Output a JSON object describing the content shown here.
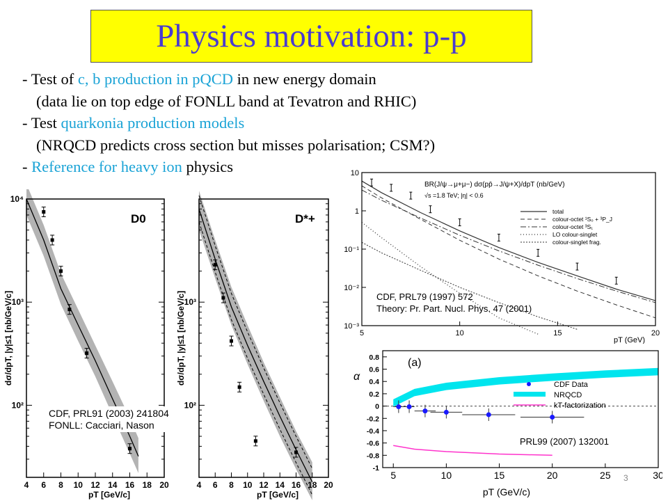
{
  "slide": {
    "title": "Physics motivation: p-p",
    "bullet1": {
      "pre": "- Test of ",
      "hl": "c, b production in pQCD",
      "post": " in new energy domain"
    },
    "bullet1_sub": "(data lie on top edge of FONLL band at Tevatron and RHIC)",
    "bullet2": {
      "pre": "- Test ",
      "hl": "quarkonia production models"
    },
    "bullet2_sub": "(NRQCD predicts cross section but misses polarisation; CSM?)",
    "bullet3": {
      "pre": "- ",
      "hl": "Reference for heavy ion",
      "post": " physics"
    },
    "page_number": "3"
  },
  "captions": {
    "d_meson": [
      "CDF, PRL91 (2003) 241804",
      "FONLL: Cacciari, Nason"
    ],
    "jpsi": [
      "CDF, PRL79 (1997) 572",
      "Theory: Pr. Part. Nucl. Phys. 47 (2001)"
    ],
    "polarisation": "PRL99 (2007) 132001"
  },
  "colors": {
    "title_bg": "#ffff00",
    "title_text": "#4a3bd0",
    "highlight": "#1aa3d6",
    "nrqcd_band": "#00e5ee",
    "kt_line": "#ff33cc",
    "cdf_data": "#1a1aff"
  },
  "chart_data": [
    {
      "type": "line",
      "title": "D0",
      "xlabel": "pT [GeV/c]",
      "ylabel": "dσ/dpT, |y|≤1 [nb/GeV/c]",
      "xlim": [
        4,
        20
      ],
      "ylim": [
        20,
        10000
      ],
      "yscale": "log",
      "xticks": [
        4,
        6,
        8,
        10,
        12,
        14,
        16,
        18,
        20
      ],
      "ytick_labels": [
        "10²",
        "10³",
        "10⁴"
      ],
      "series": [
        {
          "style": "data",
          "x": [
            6,
            7,
            8,
            9,
            11,
            16
          ],
          "y": [
            7500,
            4000,
            2000,
            850,
            320,
            38
          ]
        },
        {
          "style": "band",
          "x": [
            4,
            6,
            8,
            10,
            12,
            14,
            16,
            17
          ],
          "lo": [
            7000,
            2800,
            950,
            420,
            190,
            80,
            34,
            22
          ],
          "hi": [
            14000,
            5600,
            1900,
            850,
            380,
            170,
            75,
            48
          ]
        },
        {
          "style": "central",
          "x": [
            4,
            6,
            8,
            10,
            12,
            14,
            16,
            17
          ],
          "y": [
            10000,
            4000,
            1350,
            600,
            270,
            115,
            50,
            32
          ]
        }
      ]
    },
    {
      "type": "line",
      "title": "D*+",
      "xlabel": "pT [GeV/c]",
      "ylabel": "dσ/dpT, |y|≤1 [nb/GeV/c]",
      "xlim": [
        4,
        20
      ],
      "ylim": [
        20,
        10000
      ],
      "yscale": "log",
      "xticks": [
        4,
        6,
        8,
        10,
        12,
        14,
        16,
        18,
        20
      ],
      "ytick_labels": [
        "10²",
        "10³"
      ],
      "series": [
        {
          "style": "data",
          "x": [
            6,
            7,
            8,
            9,
            11,
            16
          ],
          "y": [
            2300,
            1100,
            420,
            150,
            45,
            35
          ]
        },
        {
          "style": "band",
          "x": [
            4,
            6,
            8,
            10,
            12,
            14,
            16,
            18
          ],
          "lo": [
            5000,
            1700,
            600,
            250,
            110,
            50,
            24,
            12
          ],
          "hi": [
            12000,
            4000,
            1400,
            600,
            260,
            120,
            56,
            28
          ]
        },
        {
          "style": "central",
          "x": [
            4,
            6,
            8,
            10,
            12,
            14,
            16,
            18
          ],
          "y": [
            8000,
            2600,
            900,
            380,
            170,
            78,
            37,
            18
          ]
        }
      ]
    },
    {
      "type": "line",
      "title": "BR(J/ψ→μ+μ−) dσ(pp̄→J/ψ+X)/dpT (nb/GeV)",
      "subtitle": "√s =1.8 TeV; |η| < 0.6",
      "xlabel": "pT (GeV)",
      "ylabel": "",
      "xlim": [
        5,
        20
      ],
      "ylim": [
        0.001,
        10
      ],
      "yscale": "log",
      "xticks": [
        5,
        10,
        15,
        20
      ],
      "ytick_labels": [
        "10",
        "1",
        "10⁻¹",
        "10⁻²",
        "10⁻³"
      ],
      "legend_position": "top-right",
      "series": [
        {
          "name": "total",
          "x": [
            5,
            6,
            8,
            10,
            12,
            14,
            16,
            18,
            20
          ],
          "y": [
            6,
            3,
            0.9,
            0.3,
            0.11,
            0.045,
            0.02,
            0.009,
            0.0045
          ]
        },
        {
          "name": "colour-octet ¹S₀ + ³P_J",
          "x": [
            5,
            6,
            8,
            10,
            12,
            14,
            16,
            18,
            20
          ],
          "y": [
            4.5,
            2.2,
            0.6,
            0.17,
            0.055,
            0.02,
            0.008,
            0.0035,
            0.0016
          ]
        },
        {
          "name": "colour-octet ³S₁",
          "x": [
            5,
            6,
            8,
            10,
            12,
            14,
            16,
            18,
            20
          ],
          "y": [
            3.5,
            1.9,
            0.65,
            0.23,
            0.09,
            0.038,
            0.017,
            0.008,
            0.004
          ]
        },
        {
          "name": "LO colour-singlet",
          "x": [
            5,
            6,
            8,
            10,
            12,
            14
          ],
          "y": [
            0.5,
            0.2,
            0.035,
            0.007,
            0.0016,
            0.0006
          ]
        },
        {
          "name": "colour-singlet frag.",
          "x": [
            5,
            6,
            8,
            10,
            12,
            14,
            16
          ],
          "y": [
            0.15,
            0.08,
            0.028,
            0.01,
            0.004,
            0.0017,
            0.0008
          ]
        },
        {
          "name": "data",
          "x": [
            5.5,
            6.5,
            7.5,
            8.5,
            10,
            12,
            14,
            16,
            18
          ],
          "y": [
            5.5,
            4,
            2.5,
            1.1,
            0.5,
            0.2,
            0.08,
            0.035,
            0.015
          ]
        }
      ]
    },
    {
      "type": "line",
      "title": "(a)",
      "xlabel": "pT (GeV/c)",
      "ylabel": "α",
      "xlim": [
        4,
        30
      ],
      "ylim": [
        -1,
        0.9
      ],
      "xticks": [
        5,
        10,
        15,
        20,
        25,
        30
      ],
      "yticks": [
        0.8,
        0.6,
        0.4,
        0.2,
        0,
        -0.2,
        -0.4,
        -0.6,
        -0.8,
        -1
      ],
      "legend_position": "top-right",
      "series": [
        {
          "name": "CDF Data",
          "x": [
            5.5,
            6.5,
            8,
            10,
            14,
            20
          ],
          "y": [
            -0.01,
            -0.01,
            -0.08,
            -0.1,
            -0.14,
            -0.18
          ]
        },
        {
          "name": "NRQCD",
          "x": [
            5,
            7,
            10,
            15,
            20,
            25,
            30
          ],
          "y": [
            0.05,
            0.22,
            0.32,
            0.41,
            0.47,
            0.52,
            0.56
          ]
        },
        {
          "name": "kT-factorization",
          "x": [
            5,
            7,
            10,
            15,
            20
          ],
          "y": [
            -0.64,
            -0.7,
            -0.74,
            -0.78,
            -0.8
          ]
        }
      ]
    }
  ]
}
